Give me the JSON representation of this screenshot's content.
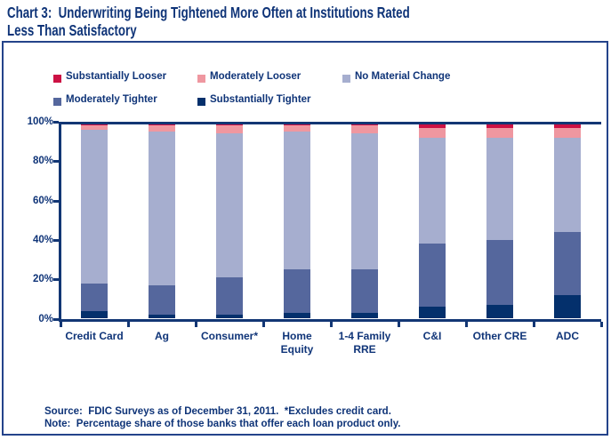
{
  "title": {
    "line1": "Chart 3:  Underwriting Being Tightened More Often at Institutions Rated",
    "line2": "Less Than Satisfactory"
  },
  "footer": {
    "source_line": "Source:  FDIC Surveys as of December 31, 2011.  *Excludes credit card.",
    "note_line": "Note:  Percentage share of those banks that offer each loan product only."
  },
  "colors": {
    "text_navy": "#0F3478",
    "axis_navy": "#123674",
    "box_border": "#24438A"
  },
  "chart_data": {
    "type": "bar",
    "subtype": "stacked-percent",
    "categories": [
      "Credit Card",
      "Ag",
      "Consumer*",
      "Home\nEquity",
      "1-4 Family\nRRE",
      "C&I",
      "Other CRE",
      "ADC"
    ],
    "series": [
      {
        "name": "Substantially Tighter",
        "color": "#04306C",
        "values": [
          4,
          2,
          2,
          3,
          3,
          6,
          7,
          12
        ]
      },
      {
        "name": "Moderately Tighter",
        "color": "#55679D",
        "values": [
          14,
          15,
          19,
          22,
          22,
          32,
          33,
          32
        ]
      },
      {
        "name": "No Material Change",
        "color": "#A6AECF",
        "values": [
          78,
          78,
          73,
          70,
          69,
          54,
          52,
          48
        ]
      },
      {
        "name": "Moderately Looser",
        "color": "#EF97A0",
        "values": [
          2,
          3,
          4,
          3,
          4,
          5,
          5,
          5
        ]
      },
      {
        "name": "Substantially Looser",
        "color": "#CC1144",
        "values": [
          2,
          2,
          2,
          2,
          2,
          3,
          3,
          3
        ]
      }
    ],
    "stack_order": "bottom-to-top",
    "ylim": [
      0,
      100
    ],
    "y_ticks": [
      0,
      20,
      40,
      60,
      80,
      100
    ],
    "y_tick_suffix": "%",
    "grid": false,
    "legend_position": "top",
    "legend_display_order": [
      [
        "Substantially Looser",
        "Moderately Looser",
        "No Material Change"
      ],
      [
        "Moderately Tighter",
        "Substantially Tighter"
      ]
    ]
  }
}
